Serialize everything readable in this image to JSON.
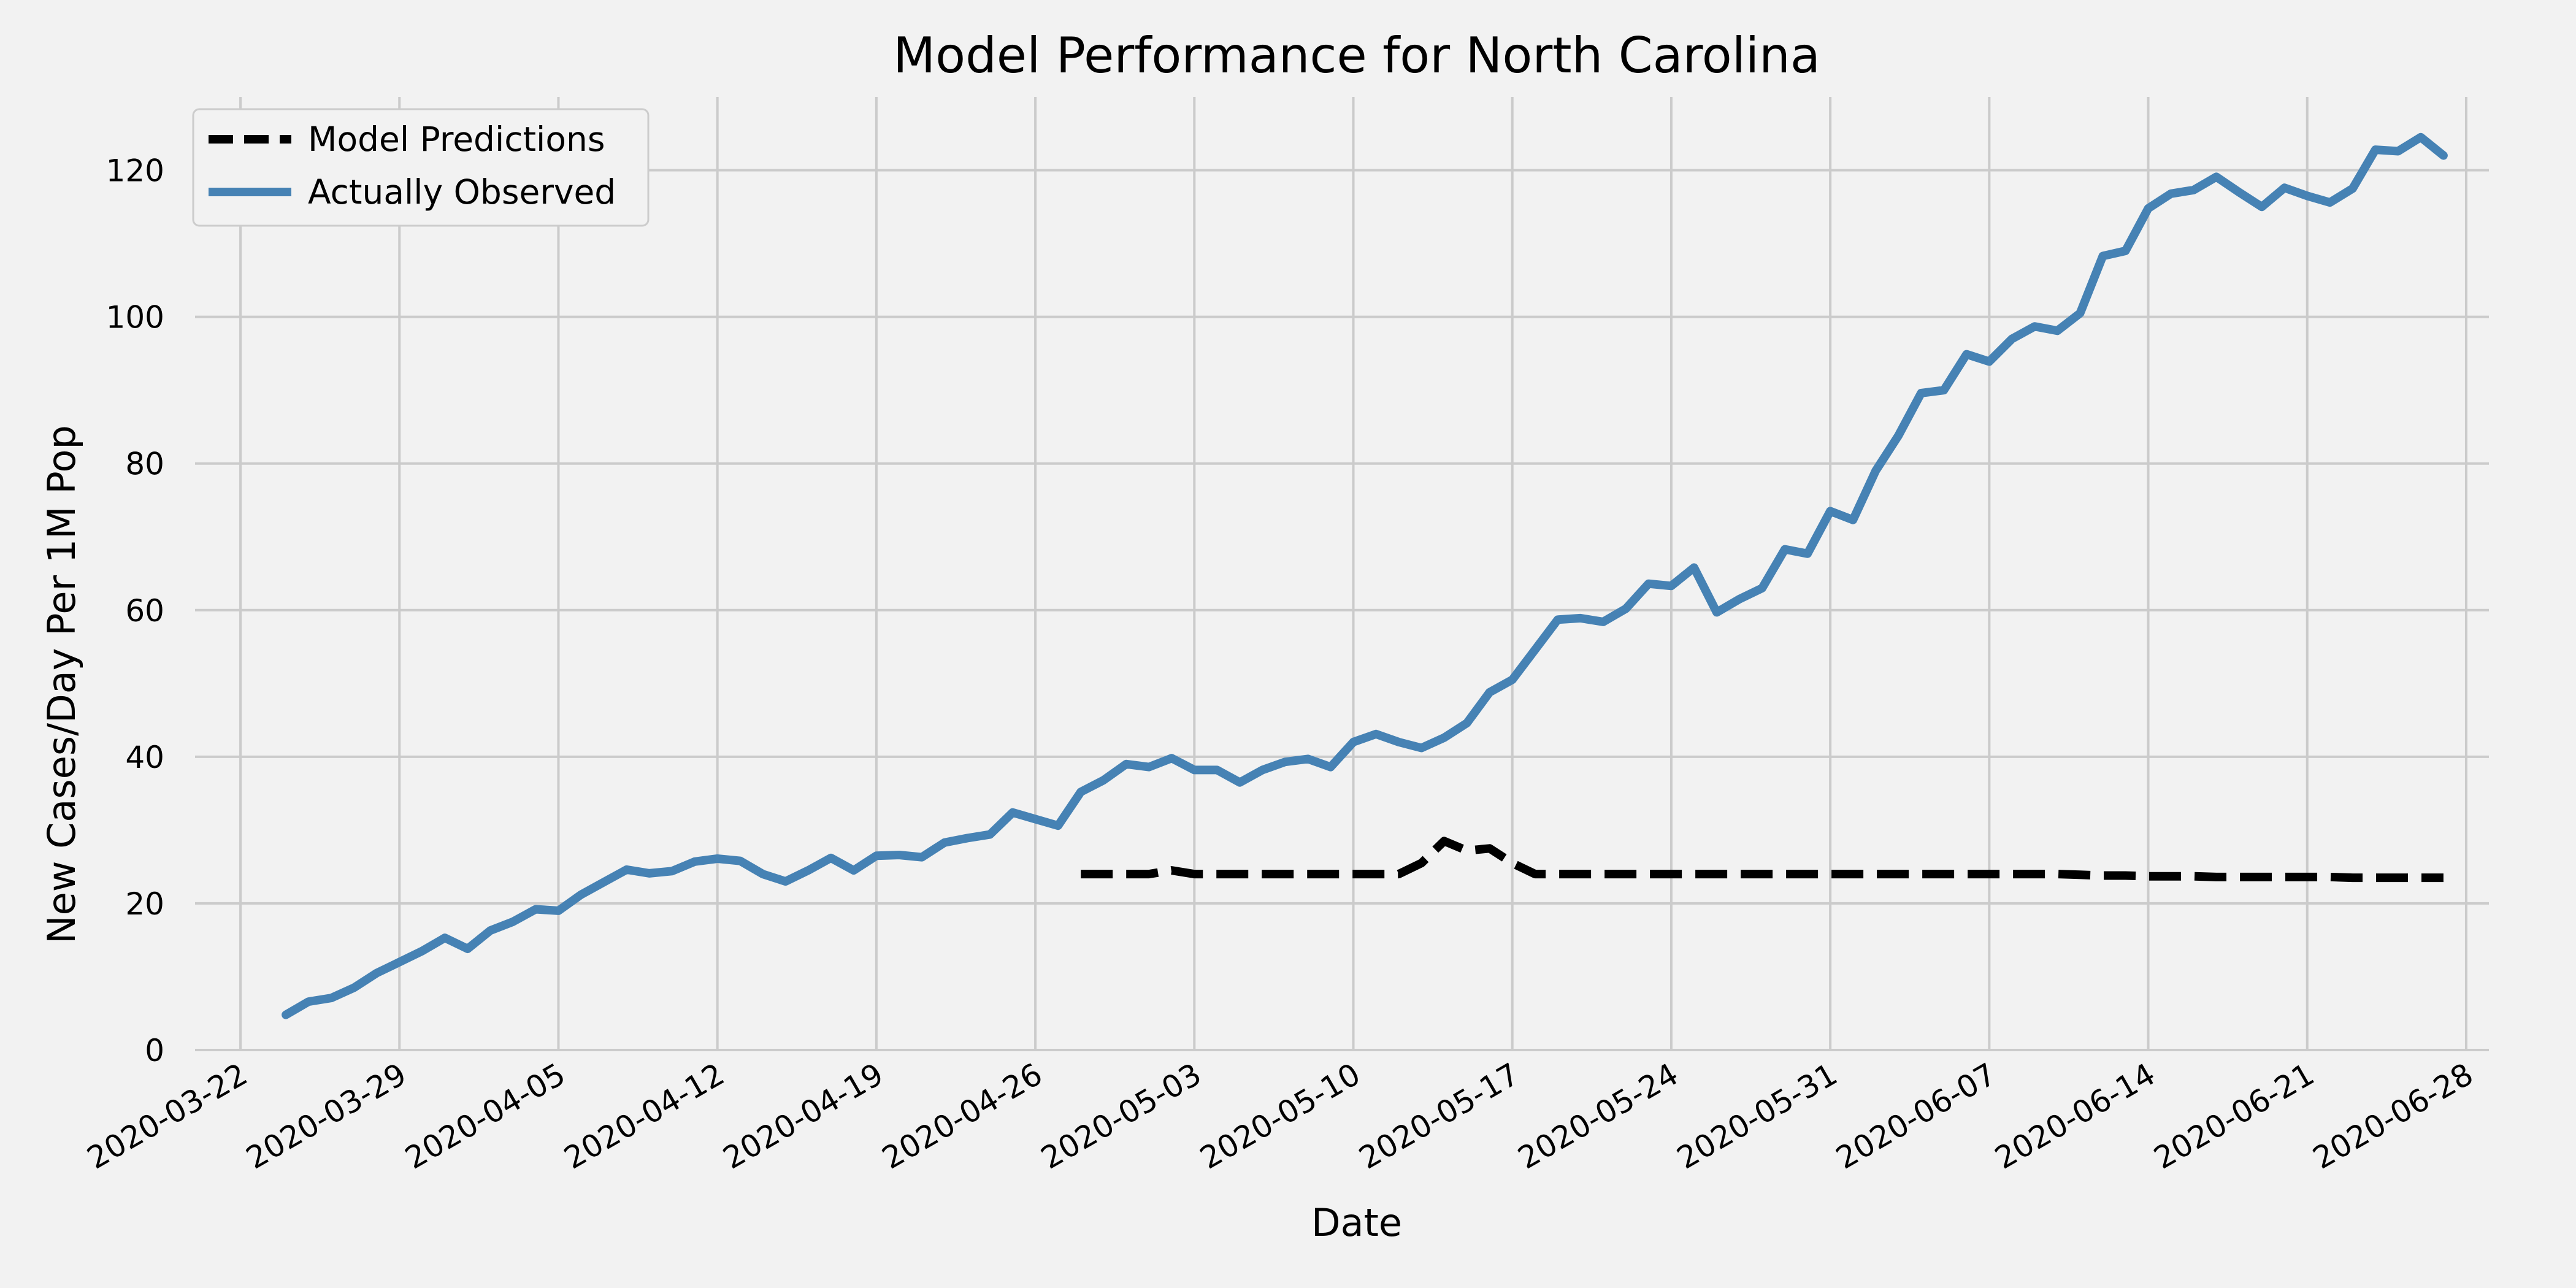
{
  "chart_data": {
    "type": "line",
    "title": "Model Performance for North Carolina",
    "xlabel": "Date",
    "ylabel": "New Cases/Day Per 1M Pop",
    "x_ticks": [
      "2020-03-22",
      "2020-03-29",
      "2020-04-05",
      "2020-04-12",
      "2020-04-19",
      "2020-04-26",
      "2020-05-03",
      "2020-05-10",
      "2020-05-17",
      "2020-05-24",
      "2020-05-31",
      "2020-06-07",
      "2020-06-14",
      "2020-06-21",
      "2020-06-28"
    ],
    "xlim": [
      "2020-03-20",
      "2020-06-29"
    ],
    "ylim": [
      0,
      130
    ],
    "y_ticks": [
      0,
      20,
      40,
      60,
      80,
      100,
      120
    ],
    "grid": true,
    "legend": "top-left",
    "series": [
      {
        "name": "Model Predictions",
        "style": "dashed",
        "color": "#000000",
        "points": [
          [
            "2020-04-28",
            24
          ],
          [
            "2020-04-29",
            24
          ],
          [
            "2020-04-30",
            24
          ],
          [
            "2020-05-01",
            24
          ],
          [
            "2020-05-02",
            24.5
          ],
          [
            "2020-05-03",
            24
          ],
          [
            "2020-05-04",
            24
          ],
          [
            "2020-05-05",
            24
          ],
          [
            "2020-05-06",
            24
          ],
          [
            "2020-05-07",
            24
          ],
          [
            "2020-05-08",
            24
          ],
          [
            "2020-05-09",
            24
          ],
          [
            "2020-05-10",
            24
          ],
          [
            "2020-05-11",
            24
          ],
          [
            "2020-05-12",
            24
          ],
          [
            "2020-05-13",
            25.5
          ],
          [
            "2020-05-14",
            28.5
          ],
          [
            "2020-05-15",
            27.2
          ],
          [
            "2020-05-16",
            27.5
          ],
          [
            "2020-05-17",
            25.5
          ],
          [
            "2020-05-18",
            24
          ],
          [
            "2020-05-19",
            24
          ],
          [
            "2020-05-20",
            24
          ],
          [
            "2020-05-21",
            24
          ],
          [
            "2020-05-22",
            24
          ],
          [
            "2020-05-23",
            24
          ],
          [
            "2020-05-24",
            24
          ],
          [
            "2020-05-25",
            24
          ],
          [
            "2020-05-26",
            24
          ],
          [
            "2020-05-27",
            24
          ],
          [
            "2020-05-28",
            24
          ],
          [
            "2020-05-29",
            24
          ],
          [
            "2020-05-30",
            24
          ],
          [
            "2020-05-31",
            24
          ],
          [
            "2020-06-01",
            24
          ],
          [
            "2020-06-02",
            24
          ],
          [
            "2020-06-03",
            24
          ],
          [
            "2020-06-04",
            24
          ],
          [
            "2020-06-05",
            24
          ],
          [
            "2020-06-06",
            24
          ],
          [
            "2020-06-07",
            24
          ],
          [
            "2020-06-08",
            24
          ],
          [
            "2020-06-09",
            24
          ],
          [
            "2020-06-10",
            24
          ],
          [
            "2020-06-11",
            23.9
          ],
          [
            "2020-06-12",
            23.8
          ],
          [
            "2020-06-13",
            23.8
          ],
          [
            "2020-06-14",
            23.7
          ],
          [
            "2020-06-15",
            23.7
          ],
          [
            "2020-06-16",
            23.7
          ],
          [
            "2020-06-17",
            23.6
          ],
          [
            "2020-06-18",
            23.6
          ],
          [
            "2020-06-19",
            23.6
          ],
          [
            "2020-06-20",
            23.6
          ],
          [
            "2020-06-21",
            23.6
          ],
          [
            "2020-06-22",
            23.6
          ],
          [
            "2020-06-23",
            23.5
          ],
          [
            "2020-06-24",
            23.5
          ],
          [
            "2020-06-25",
            23.5
          ],
          [
            "2020-06-26",
            23.5
          ],
          [
            "2020-06-27",
            23.5
          ]
        ]
      },
      {
        "name": "Actually Observed",
        "style": "solid",
        "color": "#4682b4",
        "points": [
          [
            "2020-03-24",
            4.8
          ],
          [
            "2020-03-25",
            6.6
          ],
          [
            "2020-03-26",
            7.1
          ],
          [
            "2020-03-27",
            8.5
          ],
          [
            "2020-03-28",
            10.5
          ],
          [
            "2020-03-29",
            12.0
          ],
          [
            "2020-03-30",
            13.5
          ],
          [
            "2020-03-31",
            15.3
          ],
          [
            "2020-04-01",
            13.8
          ],
          [
            "2020-04-02",
            16.3
          ],
          [
            "2020-04-03",
            17.5
          ],
          [
            "2020-04-04",
            19.2
          ],
          [
            "2020-04-05",
            19.0
          ],
          [
            "2020-04-06",
            21.2
          ],
          [
            "2020-04-07",
            22.9
          ],
          [
            "2020-04-08",
            24.6
          ],
          [
            "2020-04-09",
            24.1
          ],
          [
            "2020-04-10",
            24.4
          ],
          [
            "2020-04-11",
            25.7
          ],
          [
            "2020-04-12",
            26.1
          ],
          [
            "2020-04-13",
            25.8
          ],
          [
            "2020-04-14",
            24.0
          ],
          [
            "2020-04-15",
            23.0
          ],
          [
            "2020-04-16",
            24.5
          ],
          [
            "2020-04-17",
            26.2
          ],
          [
            "2020-04-18",
            24.5
          ],
          [
            "2020-04-19",
            26.5
          ],
          [
            "2020-04-20",
            26.6
          ],
          [
            "2020-04-21",
            26.3
          ],
          [
            "2020-04-22",
            28.3
          ],
          [
            "2020-04-23",
            28.9
          ],
          [
            "2020-04-24",
            29.4
          ],
          [
            "2020-04-25",
            32.4
          ],
          [
            "2020-04-26",
            31.5
          ],
          [
            "2020-04-27",
            30.6
          ],
          [
            "2020-04-28",
            35.2
          ],
          [
            "2020-04-29",
            36.8
          ],
          [
            "2020-04-30",
            39.0
          ],
          [
            "2020-05-01",
            38.6
          ],
          [
            "2020-05-02",
            39.8
          ],
          [
            "2020-05-03",
            38.2
          ],
          [
            "2020-05-04",
            38.2
          ],
          [
            "2020-05-05",
            36.5
          ],
          [
            "2020-05-06",
            38.2
          ],
          [
            "2020-05-07",
            39.3
          ],
          [
            "2020-05-08",
            39.7
          ],
          [
            "2020-05-09",
            38.6
          ],
          [
            "2020-05-10",
            42.0
          ],
          [
            "2020-05-11",
            43.1
          ],
          [
            "2020-05-12",
            42.0
          ],
          [
            "2020-05-13",
            41.2
          ],
          [
            "2020-05-14",
            42.6
          ],
          [
            "2020-05-15",
            44.6
          ],
          [
            "2020-05-16",
            48.8
          ],
          [
            "2020-05-17",
            50.5
          ],
          [
            "2020-05-18",
            54.6
          ],
          [
            "2020-05-19",
            58.7
          ],
          [
            "2020-05-20",
            58.9
          ],
          [
            "2020-05-21",
            58.4
          ],
          [
            "2020-05-22",
            60.2
          ],
          [
            "2020-05-23",
            63.6
          ],
          [
            "2020-05-24",
            63.3
          ],
          [
            "2020-05-25",
            65.8
          ],
          [
            "2020-05-26",
            59.7
          ],
          [
            "2020-05-27",
            61.5
          ],
          [
            "2020-05-28",
            63.0
          ],
          [
            "2020-05-29",
            68.3
          ],
          [
            "2020-05-30",
            67.7
          ],
          [
            "2020-05-31",
            73.5
          ],
          [
            "2020-06-01",
            72.3
          ],
          [
            "2020-06-02",
            79.0
          ],
          [
            "2020-06-03",
            83.8
          ],
          [
            "2020-06-04",
            89.6
          ],
          [
            "2020-06-05",
            90.0
          ],
          [
            "2020-06-06",
            94.9
          ],
          [
            "2020-06-07",
            93.9
          ],
          [
            "2020-06-08",
            97.0
          ],
          [
            "2020-06-09",
            98.7
          ],
          [
            "2020-06-10",
            98.1
          ],
          [
            "2020-06-11",
            100.5
          ],
          [
            "2020-06-12",
            108.3
          ],
          [
            "2020-06-13",
            109.0
          ],
          [
            "2020-06-14",
            114.8
          ],
          [
            "2020-06-15",
            116.8
          ],
          [
            "2020-06-16",
            117.3
          ],
          [
            "2020-06-17",
            119.1
          ],
          [
            "2020-06-18",
            117.0
          ],
          [
            "2020-06-19",
            115.0
          ],
          [
            "2020-06-20",
            117.6
          ],
          [
            "2020-06-21",
            116.5
          ],
          [
            "2020-06-22",
            115.6
          ],
          [
            "2020-06-23",
            117.5
          ],
          [
            "2020-06-24",
            122.8
          ],
          [
            "2020-06-25",
            122.6
          ],
          [
            "2020-06-26",
            124.5
          ],
          [
            "2020-06-27",
            122.0
          ]
        ]
      }
    ]
  }
}
